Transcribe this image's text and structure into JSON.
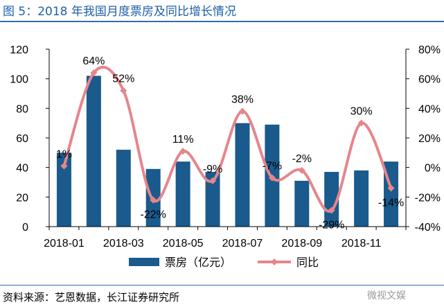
{
  "figure": {
    "title": "图 5：2018 年我国月度票房及同比增长情况",
    "source": "资料来源：艺恩数据，长江证券研究所",
    "watermark": "微视文娱"
  },
  "chart_data": {
    "type": "bar",
    "categories": [
      "2018-01",
      "2018-02",
      "2018-03",
      "2018-04",
      "2018-05",
      "2018-06",
      "2018-07",
      "2018-08",
      "2018-09",
      "2018-10",
      "2018-11",
      "2018-12"
    ],
    "xtick_labels": [
      "2018-01",
      "2018-03",
      "2018-05",
      "2018-07",
      "2018-09",
      "2018-11"
    ],
    "series": [
      {
        "name": "票房（亿元）",
        "type": "bar",
        "axis": "left",
        "color": "#1a5a8c",
        "values": [
          50,
          102,
          52,
          39,
          44,
          37,
          70,
          69,
          31,
          37,
          38,
          44
        ]
      },
      {
        "name": "同比",
        "type": "line",
        "axis": "right",
        "color": "#e5868b",
        "values": [
          1,
          64,
          52,
          -22,
          11,
          -9,
          38,
          -7,
          -2,
          -29,
          30,
          -14
        ],
        "labels": [
          "1%",
          "64%",
          "52%",
          "-22%",
          "11%",
          "-9%",
          "38%",
          "-7%",
          "-2%",
          "-29%",
          "30%",
          "-14%"
        ]
      }
    ],
    "y_left": {
      "min": 0,
      "max": 120,
      "ticks": [
        0,
        20,
        40,
        60,
        80,
        100,
        120
      ]
    },
    "y_right": {
      "min": -40,
      "max": 80,
      "ticks": [
        "-40%",
        "-20%",
        "0%",
        "20%",
        "40%",
        "60%",
        "80%"
      ]
    },
    "legend_position": "bottom",
    "grid": false
  }
}
